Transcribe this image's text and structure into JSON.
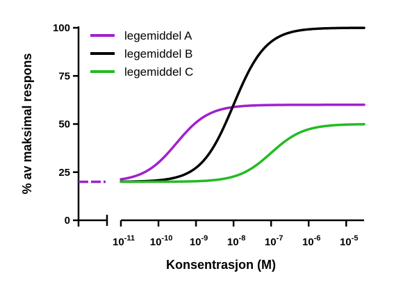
{
  "chart_data": {
    "type": "line",
    "title": "",
    "xlabel": "Konsentrasjon (M)",
    "ylabel": "% av maksimal respons",
    "xscale": "log",
    "xlim": [
      1e-11,
      3e-05
    ],
    "ylim": [
      0,
      100
    ],
    "x_axis_break": true,
    "baseline_value": 20,
    "x_ticks": [
      {
        "value": 1e-11,
        "base": "10",
        "exp": "-11"
      },
      {
        "value": 1e-10,
        "base": "10",
        "exp": "-10"
      },
      {
        "value": 1e-09,
        "base": "10",
        "exp": "-9"
      },
      {
        "value": 1e-08,
        "base": "10",
        "exp": "-8"
      },
      {
        "value": 1e-07,
        "base": "10",
        "exp": "-7"
      },
      {
        "value": 1e-06,
        "base": "10",
        "exp": "-6"
      },
      {
        "value": 1e-05,
        "base": "10",
        "exp": "-5"
      }
    ],
    "y_ticks": [
      {
        "value": 0,
        "label": "0"
      },
      {
        "value": 25,
        "label": "25"
      },
      {
        "value": 50,
        "label": "50"
      },
      {
        "value": 75,
        "label": "75"
      },
      {
        "value": 100,
        "label": "100"
      }
    ],
    "legend_position": "top-left",
    "series": [
      {
        "name": "legemiddel A",
        "color": "#a020d0",
        "bottom": 20,
        "top": 60,
        "ec50": 3e-10,
        "hill": 1
      },
      {
        "name": "legemiddel B",
        "color": "#000000",
        "bottom": 20,
        "top": 100,
        "ec50": 1e-08,
        "hill": 1
      },
      {
        "name": "legemiddel C",
        "color": "#22bb22",
        "bottom": 20,
        "top": 50,
        "ec50": 1e-07,
        "hill": 1
      }
    ]
  }
}
